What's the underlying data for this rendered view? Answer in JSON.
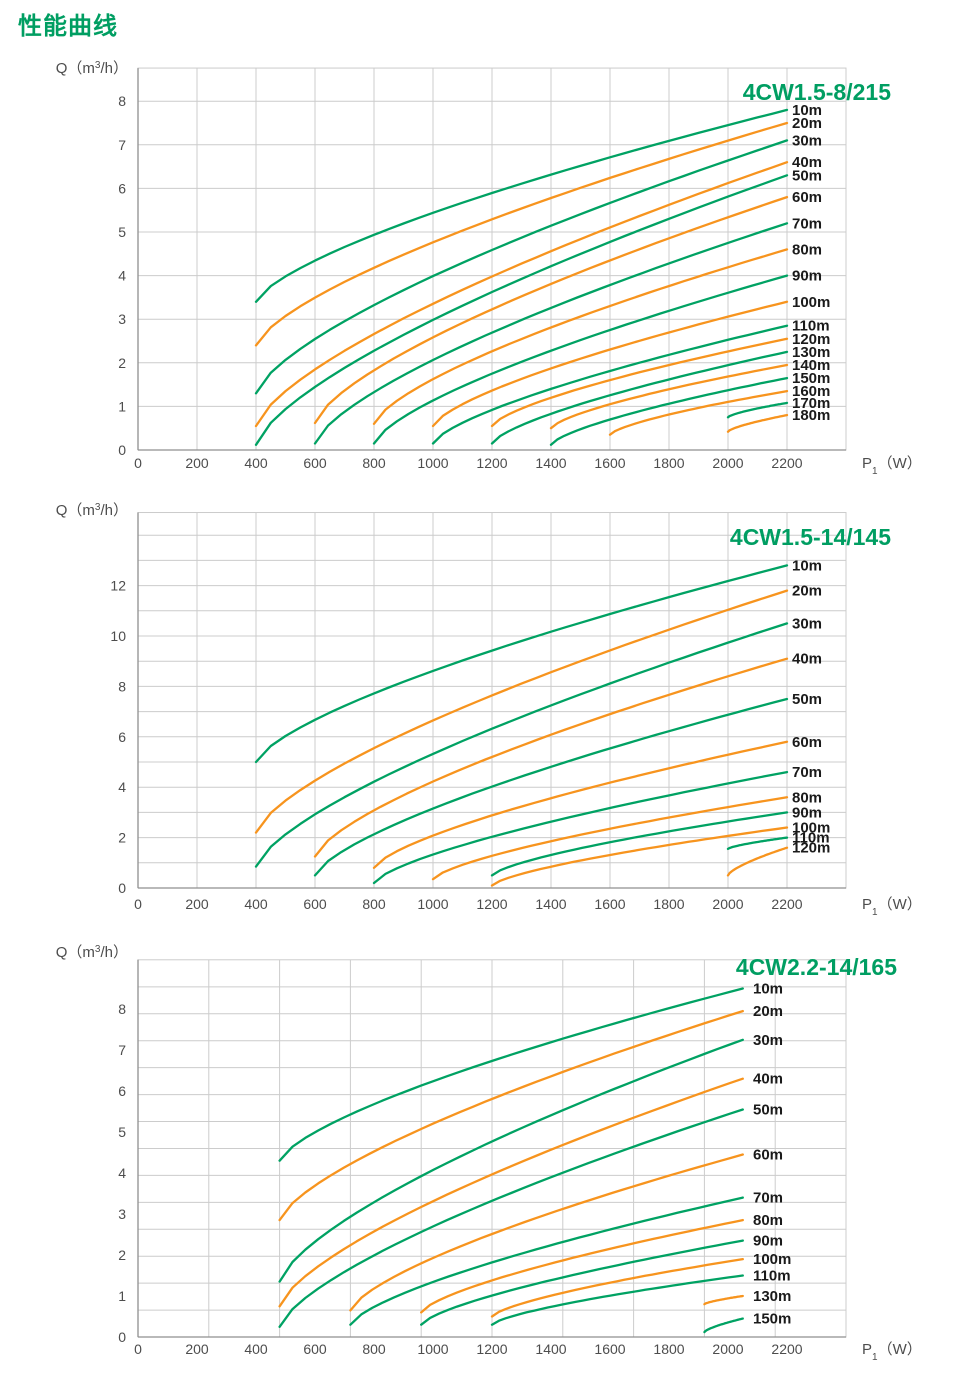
{
  "page_title": "性能曲线",
  "colors": {
    "green": "#00A263",
    "orange": "#F7941E",
    "grid": "#cccccc",
    "axis": "#8f8f8f",
    "tick_text": "#4d4d4d",
    "curve_label_text": "#1a1a1a",
    "title_green": "#009E62",
    "background": "#ffffff"
  },
  "chart_data": [
    {
      "type": "line",
      "title": "4CW1.5-8/215",
      "xlabel": "P₁（W）",
      "ylabel": "Q（m³/h）",
      "xlim": [
        0,
        2400
      ],
      "ylim": [
        0,
        8.76
      ],
      "x_ticks": [
        0,
        200,
        400,
        600,
        800,
        1000,
        1200,
        1400,
        1600,
        1800,
        2000,
        2200
      ],
      "y_ticks": [
        0,
        1,
        2,
        3,
        4,
        5,
        6,
        7,
        8
      ],
      "grid": {
        "x_step": 200,
        "y_step": 1
      },
      "legend_position": "right-inline",
      "series": [
        {
          "name": "10m",
          "color": "green",
          "points": [
            [
              400,
              3.4
            ],
            [
              2200,
              7.8
            ]
          ]
        },
        {
          "name": "20m",
          "color": "orange",
          "points": [
            [
              400,
              2.4
            ],
            [
              2200,
              7.5
            ]
          ]
        },
        {
          "name": "30m",
          "color": "green",
          "points": [
            [
              400,
              1.3
            ],
            [
              2200,
              7.1
            ]
          ]
        },
        {
          "name": "40m",
          "color": "orange",
          "points": [
            [
              400,
              0.55
            ],
            [
              2200,
              6.6
            ]
          ]
        },
        {
          "name": "50m",
          "color": "green",
          "points": [
            [
              400,
              0.12
            ],
            [
              2200,
              6.3
            ]
          ]
        },
        {
          "name": "60m",
          "color": "orange",
          "points": [
            [
              600,
              0.62
            ],
            [
              2200,
              5.8
            ]
          ]
        },
        {
          "name": "70m",
          "color": "green",
          "points": [
            [
              600,
              0.15
            ],
            [
              2200,
              5.2
            ]
          ]
        },
        {
          "name": "80m",
          "color": "orange",
          "points": [
            [
              800,
              0.6
            ],
            [
              2200,
              4.6
            ]
          ]
        },
        {
          "name": "90m",
          "color": "green",
          "points": [
            [
              800,
              0.15
            ],
            [
              2200,
              4.0
            ]
          ]
        },
        {
          "name": "100m",
          "color": "orange",
          "points": [
            [
              1000,
              0.55
            ],
            [
              2200,
              3.4
            ]
          ]
        },
        {
          "name": "110m",
          "color": "green",
          "points": [
            [
              1000,
              0.15
            ],
            [
              2200,
              2.85
            ]
          ]
        },
        {
          "name": "120m",
          "color": "orange",
          "points": [
            [
              1200,
              0.55
            ],
            [
              2200,
              2.55
            ]
          ]
        },
        {
          "name": "130m",
          "color": "green",
          "points": [
            [
              1200,
              0.15
            ],
            [
              2200,
              2.25
            ]
          ]
        },
        {
          "name": "140m",
          "color": "orange",
          "points": [
            [
              1400,
              0.5
            ],
            [
              2200,
              1.95
            ]
          ]
        },
        {
          "name": "150m",
          "color": "green",
          "points": [
            [
              1400,
              0.12
            ],
            [
              2200,
              1.65
            ]
          ]
        },
        {
          "name": "160m",
          "color": "orange",
          "points": [
            [
              1600,
              0.35
            ],
            [
              2200,
              1.35
            ]
          ]
        },
        {
          "name": "170m",
          "color": "green",
          "points": [
            [
              2000,
              0.75
            ],
            [
              2200,
              1.08
            ]
          ]
        },
        {
          "name": "180m",
          "color": "orange",
          "points": [
            [
              2000,
              0.42
            ],
            [
              2200,
              0.8
            ]
          ]
        }
      ]
    },
    {
      "type": "line",
      "title": "4CW1.5-14/145",
      "xlabel": "P₁（W）",
      "ylabel": "Q（m³/h）",
      "xlim": [
        0,
        2400
      ],
      "ylim": [
        0,
        14.9
      ],
      "x_ticks": [
        0,
        200,
        400,
        600,
        800,
        1000,
        1200,
        1400,
        1600,
        1800,
        2000,
        2200
      ],
      "y_ticks": [
        0,
        2,
        4,
        6,
        8,
        10,
        12
      ],
      "grid": {
        "x_step": 200,
        "y_step": 1
      },
      "legend_position": "right-inline",
      "series": [
        {
          "name": "10m",
          "color": "green",
          "points": [
            [
              400,
              5.0
            ],
            [
              2200,
              12.8
            ]
          ]
        },
        {
          "name": "20m",
          "color": "orange",
          "points": [
            [
              400,
              2.2
            ],
            [
              2200,
              11.8
            ]
          ]
        },
        {
          "name": "30m",
          "color": "green",
          "points": [
            [
              400,
              0.85
            ],
            [
              2200,
              10.5
            ]
          ]
        },
        {
          "name": "40m",
          "color": "orange",
          "points": [
            [
              600,
              1.25
            ],
            [
              2200,
              9.1
            ]
          ]
        },
        {
          "name": "50m",
          "color": "green",
          "points": [
            [
              600,
              0.5
            ],
            [
              2200,
              7.5
            ]
          ]
        },
        {
          "name": "60m",
          "color": "orange",
          "points": [
            [
              800,
              0.8
            ],
            [
              2200,
              5.8
            ]
          ]
        },
        {
          "name": "70m",
          "color": "green",
          "points": [
            [
              800,
              0.2
            ],
            [
              2200,
              4.6
            ]
          ]
        },
        {
          "name": "80m",
          "color": "orange",
          "points": [
            [
              1000,
              0.35
            ],
            [
              2200,
              3.6
            ]
          ]
        },
        {
          "name": "90m",
          "color": "green",
          "points": [
            [
              1200,
              0.5
            ],
            [
              2200,
              3.0
            ]
          ]
        },
        {
          "name": "100m",
          "color": "orange",
          "points": [
            [
              1200,
              0.1
            ],
            [
              2200,
              2.4
            ]
          ]
        },
        {
          "name": "110m",
          "color": "green",
          "points": [
            [
              2000,
              1.55
            ],
            [
              2200,
              2.0
            ]
          ]
        },
        {
          "name": "120m",
          "color": "orange",
          "points": [
            [
              2000,
              0.5
            ],
            [
              2200,
              1.6
            ]
          ]
        }
      ]
    },
    {
      "type": "line",
      "title": "4CW2.2-14/165",
      "xlabel": "P₁（W）",
      "ylabel": "Q（m³/h）",
      "xlim": [
        0,
        2400
      ],
      "ylim": [
        0,
        9.2
      ],
      "x_ticks": [
        0,
        200,
        400,
        600,
        800,
        1000,
        1200,
        1400,
        1600,
        1800,
        2000,
        2200
      ],
      "y_ticks": [
        0,
        1,
        2,
        3,
        4,
        5,
        6,
        7,
        8
      ],
      "grid": {
        "x_step": 240,
        "y_step": 0.657
      },
      "legend_position": "right-inline",
      "series": [
        {
          "name": "10m",
          "color": "green",
          "points": [
            [
              480,
              4.3
            ],
            [
              2050,
              8.5
            ]
          ]
        },
        {
          "name": "20m",
          "color": "orange",
          "points": [
            [
              480,
              2.85
            ],
            [
              2050,
              7.95
            ]
          ]
        },
        {
          "name": "30m",
          "color": "green",
          "points": [
            [
              480,
              1.35
            ],
            [
              2050,
              7.25
            ]
          ]
        },
        {
          "name": "40m",
          "color": "orange",
          "points": [
            [
              480,
              0.75
            ],
            [
              2050,
              6.3
            ]
          ]
        },
        {
          "name": "50m",
          "color": "green",
          "points": [
            [
              480,
              0.25
            ],
            [
              2050,
              5.55
            ]
          ]
        },
        {
          "name": "60m",
          "color": "orange",
          "points": [
            [
              720,
              0.65
            ],
            [
              2050,
              4.45
            ]
          ]
        },
        {
          "name": "70m",
          "color": "green",
          "points": [
            [
              720,
              0.3
            ],
            [
              2050,
              3.4
            ]
          ]
        },
        {
          "name": "80m",
          "color": "orange",
          "points": [
            [
              960,
              0.6
            ],
            [
              2050,
              2.85
            ]
          ]
        },
        {
          "name": "90m",
          "color": "green",
          "points": [
            [
              960,
              0.3
            ],
            [
              2050,
              2.35
            ]
          ]
        },
        {
          "name": "100m",
          "color": "orange",
          "points": [
            [
              1200,
              0.5
            ],
            [
              2050,
              1.9
            ]
          ]
        },
        {
          "name": "110m",
          "color": "green",
          "points": [
            [
              1200,
              0.3
            ],
            [
              2050,
              1.5
            ]
          ]
        },
        {
          "name": "130m",
          "color": "orange",
          "points": [
            [
              1920,
              0.8
            ],
            [
              2050,
              1.0
            ]
          ]
        },
        {
          "name": "150m",
          "color": "green",
          "points": [
            [
              1920,
              0.12
            ],
            [
              2050,
              0.45
            ]
          ]
        }
      ]
    }
  ]
}
